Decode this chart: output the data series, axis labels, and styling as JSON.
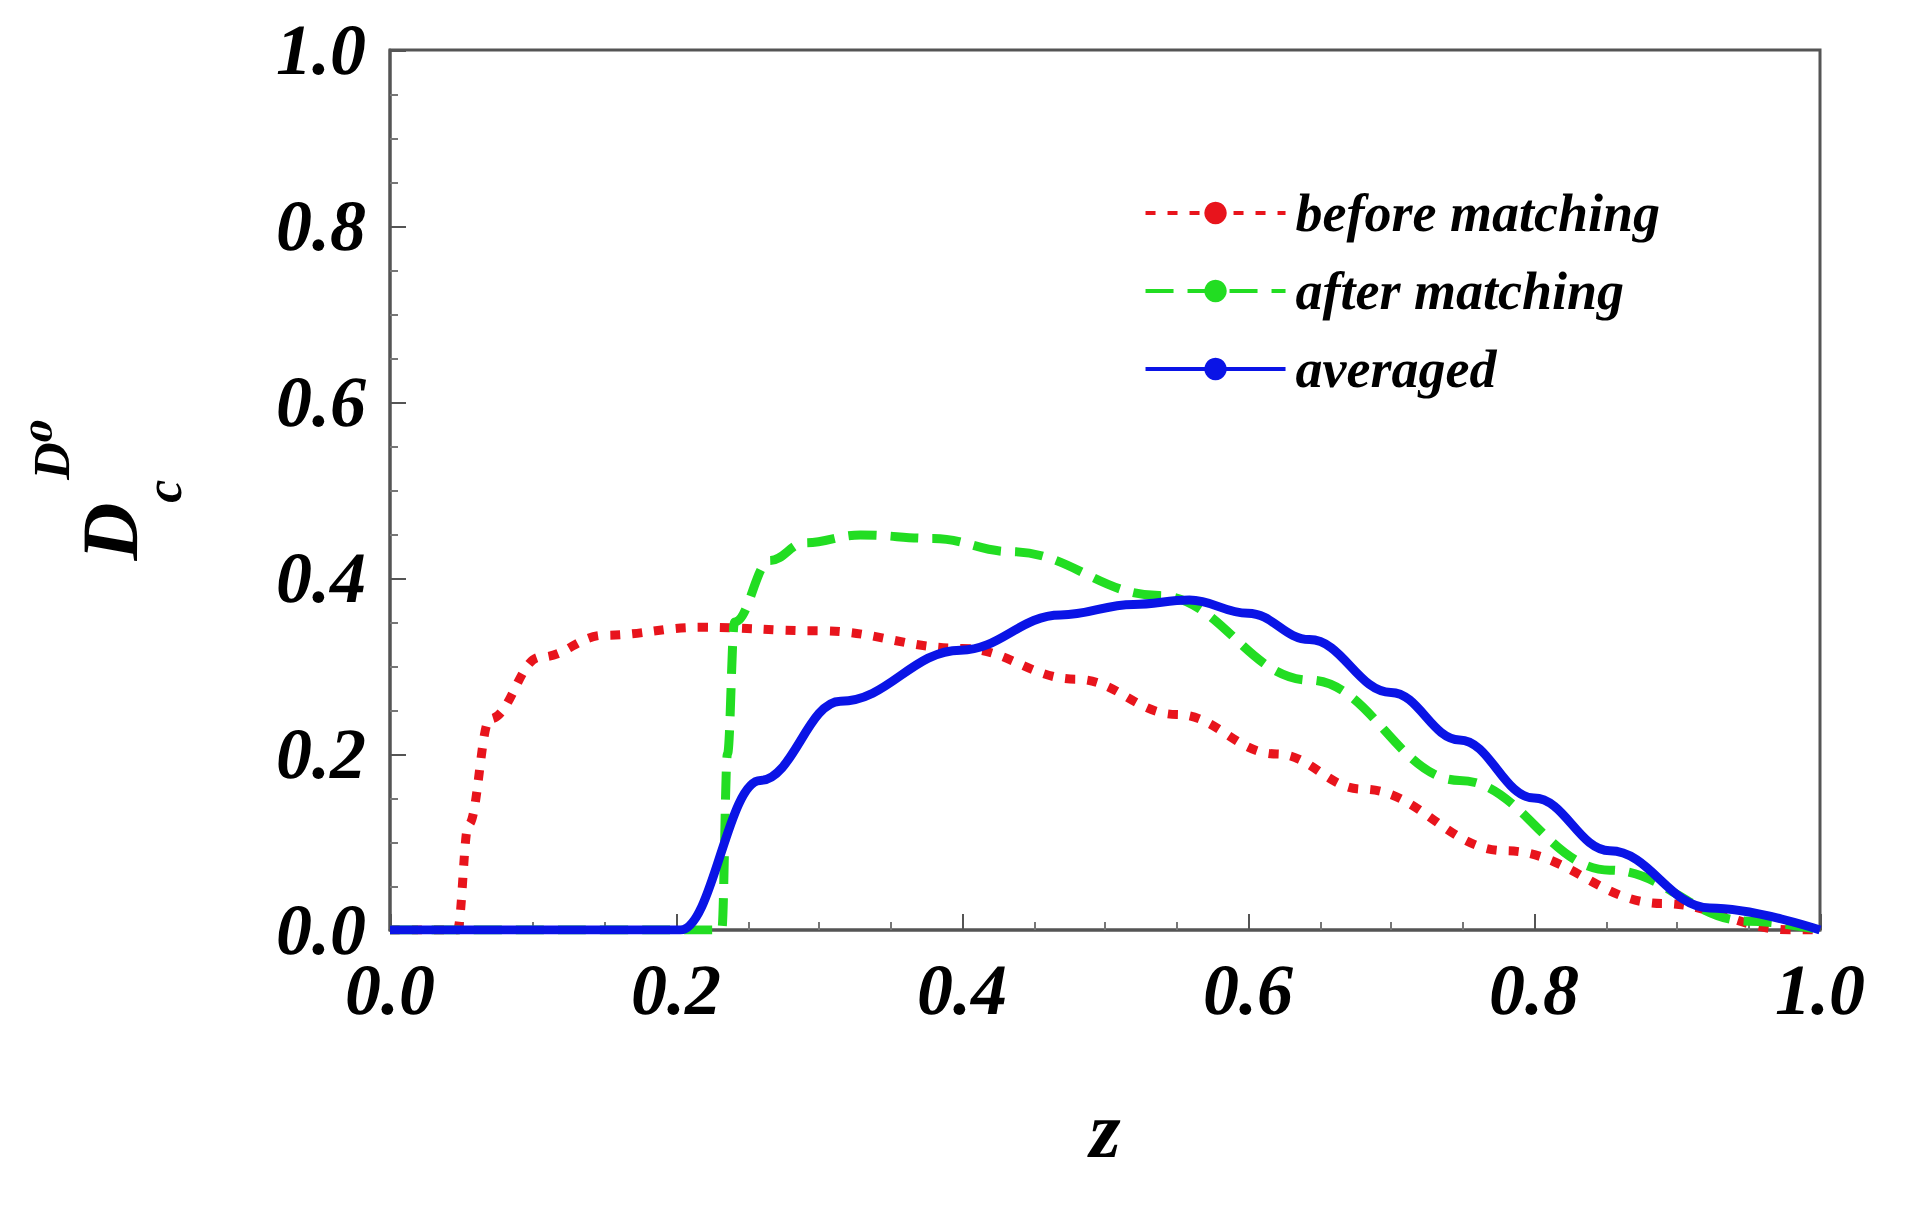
{
  "chart_data": {
    "type": "line",
    "xlabel": "z",
    "ylabel": "D$_{c}$$^{D⁰}$",
    "xlim": [
      0,
      1
    ],
    "ylim": [
      0,
      1
    ],
    "xticks": [
      {
        "value": 0,
        "label": "0.0"
      },
      {
        "value": 0.2,
        "label": "0.2"
      },
      {
        "value": 0.4,
        "label": "0.4"
      },
      {
        "value": 0.6,
        "label": "0.6"
      },
      {
        "value": 0.8,
        "label": "0.8"
      },
      {
        "value": 1,
        "label": "1.0"
      }
    ],
    "yticks": [
      {
        "value": 0,
        "label": "0.0"
      },
      {
        "value": 0.2,
        "label": "0.2"
      },
      {
        "value": 0.4,
        "label": "0.4"
      },
      {
        "value": 0.6,
        "label": "0.6"
      },
      {
        "value": 0.8,
        "label": "0.8"
      },
      {
        "value": 1,
        "label": "1.0"
      }
    ],
    "grid": false,
    "legend": "top right",
    "marker": "none",
    "series": [
      {
        "name": "before matching",
        "color": "#e8141c",
        "line_style": "dotted",
        "x": [
          0,
          0.047,
          0.055,
          0.07,
          0.105,
          0.15,
          0.217,
          0.3,
          0.4,
          0.48,
          0.55,
          0.62,
          0.68,
          0.78,
          0.89,
          0.98,
          1
        ],
        "values": [
          0,
          0,
          0.12,
          0.24,
          0.31,
          0.335,
          0.344,
          0.34,
          0.32,
          0.285,
          0.245,
          0.2,
          0.16,
          0.09,
          0.03,
          0,
          0
        ]
      },
      {
        "name": "after matching",
        "color": "#22dd22",
        "line_style": "dashed",
        "x": [
          0,
          0.232,
          0.236,
          0.241,
          0.266,
          0.29,
          0.329,
          0.38,
          0.434,
          0.538,
          0.643,
          0.748,
          0.853,
          0.95,
          1
        ],
        "values": [
          0,
          0,
          0.2,
          0.35,
          0.42,
          0.44,
          0.449,
          0.445,
          0.43,
          0.38,
          0.284,
          0.17,
          0.068,
          0.01,
          0
        ]
      },
      {
        "name": "averaged",
        "color": "#0a14e6",
        "line_style": "solid",
        "x": [
          0,
          0.203,
          0.259,
          0.315,
          0.399,
          0.469,
          0.52,
          0.559,
          0.6,
          0.643,
          0.7,
          0.748,
          0.8,
          0.853,
          0.923,
          1
        ],
        "values": [
          0,
          0,
          0.17,
          0.26,
          0.318,
          0.358,
          0.37,
          0.375,
          0.36,
          0.33,
          0.27,
          0.216,
          0.15,
          0.09,
          0.025,
          0
        ]
      }
    ]
  }
}
